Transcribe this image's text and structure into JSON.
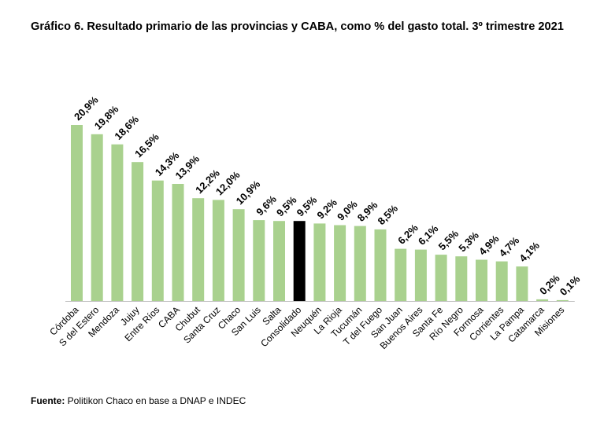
{
  "title": "Gráfico 6. Resultado primario de las provincias y CABA, como % del gasto total. 3º trimestre 2021",
  "source": {
    "label": "Fuente:",
    "text": " Politikon Chaco en base a DNAP e INDEC"
  },
  "colors": {
    "bar": "#a9d18e",
    "highlight": "#000000",
    "axis": "#bfbfbf"
  },
  "chart_data": {
    "type": "bar",
    "categories": [
      "Córdoba",
      "S del Estero",
      "Mendoza",
      "Jujuy",
      "Entre Ríos",
      "CABA",
      "Chubut",
      "Santa Cruz",
      "Chaco",
      "San Luis",
      "Salta",
      "Consolidado",
      "Neuquén",
      "La Rioja",
      "Tucumán",
      "T del Fuego",
      "San Juan",
      "Buenos Aires",
      "Santa Fe",
      "Río Negro",
      "Formosa",
      "Corrientes",
      "La Pampa",
      "Catamarca",
      "Misiones"
    ],
    "values": [
      20.9,
      19.8,
      18.6,
      16.5,
      14.3,
      13.9,
      12.2,
      12.0,
      10.9,
      9.6,
      9.5,
      9.5,
      9.2,
      9.0,
      8.9,
      8.5,
      6.2,
      6.1,
      5.5,
      5.3,
      4.9,
      4.7,
      4.1,
      0.2,
      0.1
    ],
    "value_labels": [
      "20,9%",
      "19,8%",
      "18,6%",
      "16,5%",
      "14,3%",
      "13,9%",
      "12,2%",
      "12,0%",
      "10,9%",
      "9,6%",
      "9,5%",
      "9,5%",
      "9,2%",
      "9,0%",
      "8,9%",
      "8,5%",
      "6,2%",
      "6,1%",
      "5,5%",
      "5,3%",
      "4,9%",
      "4,7%",
      "4,1%",
      "0,2%",
      "0,1%"
    ],
    "highlight_category": "Consolidado",
    "ylim": [
      0,
      21
    ],
    "grid": false,
    "legend": "none"
  }
}
